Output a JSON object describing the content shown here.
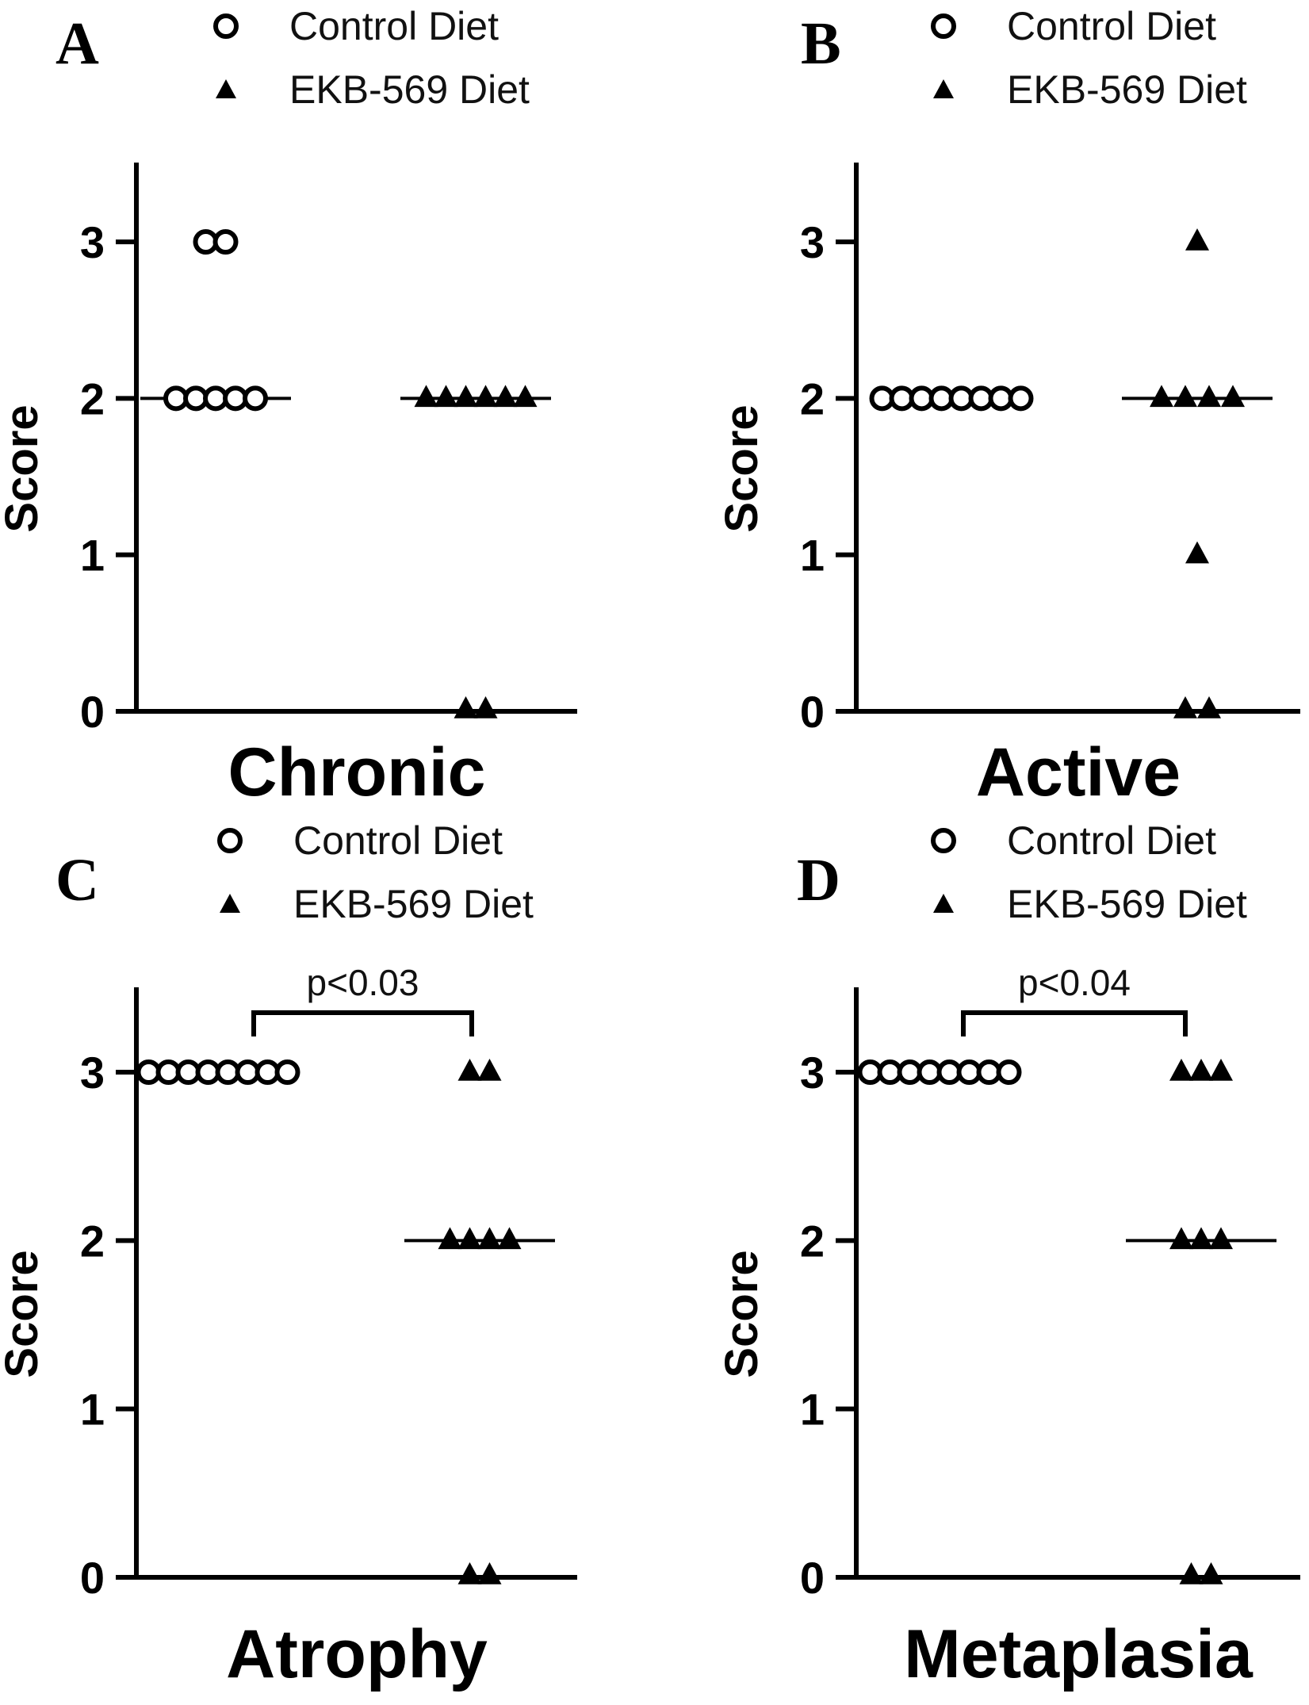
{
  "chart_data": [
    {
      "type": "scatter",
      "panel": "A",
      "xlabel": "Chronic",
      "ylabel": "Score",
      "ylim": [
        0,
        3.5
      ],
      "yticks": [
        "0",
        "1",
        "2",
        "3"
      ],
      "legend": [
        "Control Diet",
        "EKB-569 Diet"
      ],
      "series": [
        {
          "name": "Control Diet",
          "marker": "circle",
          "values": [
            3,
            3,
            2,
            2,
            2,
            2,
            2
          ],
          "median": 2
        },
        {
          "name": "EKB-569 Diet",
          "marker": "triangle",
          "values": [
            2,
            2,
            2,
            2,
            2,
            2,
            0,
            0
          ],
          "median": 2
        }
      ],
      "annotation": null
    },
    {
      "type": "scatter",
      "panel": "B",
      "xlabel": "Active",
      "ylabel": "Score",
      "ylim": [
        0,
        3.5
      ],
      "yticks": [
        "0",
        "1",
        "2",
        "3"
      ],
      "legend": [
        "Control Diet",
        "EKB-569 Diet"
      ],
      "series": [
        {
          "name": "Control Diet",
          "marker": "circle",
          "values": [
            2,
            2,
            2,
            2,
            2,
            2,
            2,
            2
          ],
          "median": 2
        },
        {
          "name": "EKB-569 Diet",
          "marker": "triangle",
          "values": [
            3,
            2,
            2,
            2,
            2,
            1,
            0,
            0
          ],
          "median": 2
        }
      ],
      "annotation": null
    },
    {
      "type": "scatter",
      "panel": "C",
      "xlabel": "Atrophy",
      "ylabel": "Score",
      "ylim": [
        0,
        3.5
      ],
      "yticks": [
        "0",
        "1",
        "2",
        "3"
      ],
      "legend": [
        "Control Diet",
        "EKB-569 Diet"
      ],
      "series": [
        {
          "name": "Control Diet",
          "marker": "circle",
          "values": [
            3,
            3,
            3,
            3,
            3,
            3,
            3,
            3
          ],
          "median": 3
        },
        {
          "name": "EKB-569 Diet",
          "marker": "triangle",
          "values": [
            3,
            3,
            2,
            2,
            2,
            2,
            0,
            0
          ],
          "median": 2
        }
      ],
      "annotation": "p<0.03"
    },
    {
      "type": "scatter",
      "panel": "D",
      "xlabel": "Metaplasia",
      "ylabel": "Score",
      "ylim": [
        0,
        3.5
      ],
      "yticks": [
        "0",
        "1",
        "2",
        "3"
      ],
      "legend": [
        "Control Diet",
        "EKB-569 Diet"
      ],
      "series": [
        {
          "name": "Control Diet",
          "marker": "circle",
          "values": [
            3,
            3,
            3,
            3,
            3,
            3,
            3,
            3
          ],
          "median": 3
        },
        {
          "name": "EKB-569 Diet",
          "marker": "triangle",
          "values": [
            3,
            3,
            3,
            2,
            2,
            2,
            0,
            0
          ],
          "median": 2
        }
      ],
      "annotation": "p<0.04"
    }
  ]
}
